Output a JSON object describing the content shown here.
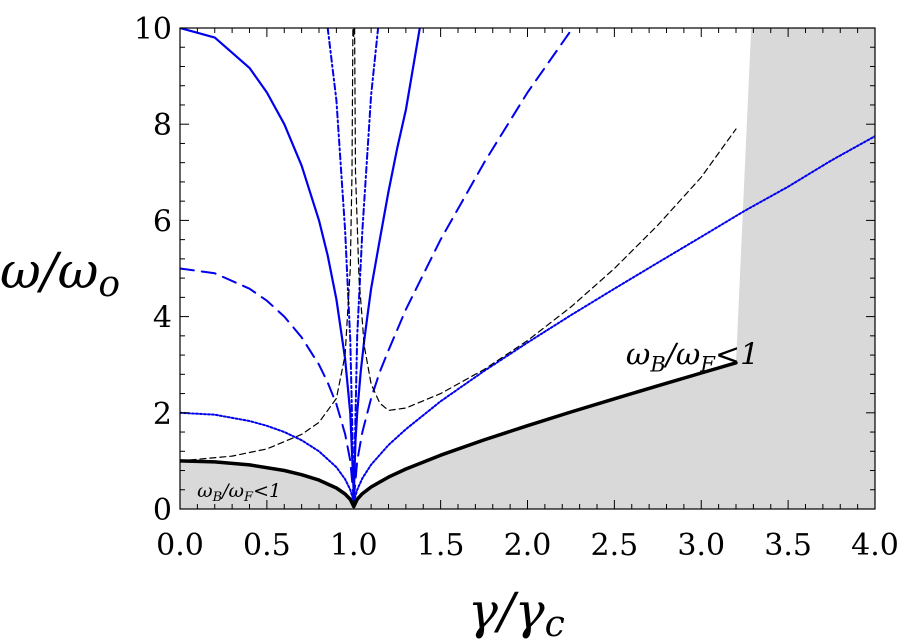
{
  "chart_data": {
    "type": "line",
    "xlabel": "γ/γ",
    "xlabel_sub": "c",
    "ylabel": "ω/ω",
    "ylabel_sub": "o",
    "xlim": [
      0,
      4
    ],
    "ylim": [
      0,
      10
    ],
    "xticks": [
      "0.0",
      "0.5",
      "1.0",
      "1.5",
      "2.0",
      "2.5",
      "3.0",
      "3.5",
      "4.0"
    ],
    "yticks": [
      "0",
      "2",
      "4",
      "6",
      "8",
      "10"
    ],
    "grid": false,
    "region_color": "#d9d9d9",
    "colors": {
      "blue": "#0000ee",
      "black": "#000000"
    },
    "annotations": [
      {
        "text": "ω",
        "sub": "B",
        "mid": "/ω",
        "sub2": "F",
        "tail": "<1",
        "x": 2.95,
        "y": 3.0,
        "size": "big"
      },
      {
        "text": "ω",
        "sub": "B",
        "mid": "/ω",
        "sub2": "F",
        "tail": "<1",
        "x": 0.34,
        "y": 0.25,
        "size": "small"
      }
    ],
    "series": [
      {
        "style": "boundary",
        "color": "#000000",
        "dash": "",
        "width": 3.5,
        "points": [
          [
            0,
            1
          ],
          [
            0.2,
            0.98
          ],
          [
            0.4,
            0.917
          ],
          [
            0.6,
            0.8
          ],
          [
            0.7,
            0.714
          ],
          [
            0.8,
            0.6
          ],
          [
            0.9,
            0.436
          ],
          [
            0.95,
            0.312
          ],
          [
            0.98,
            0.2
          ],
          [
            1,
            0.05
          ],
          [
            1.02,
            0.202
          ],
          [
            1.05,
            0.32
          ],
          [
            1.1,
            0.458
          ],
          [
            1.2,
            0.663
          ],
          [
            1.3,
            0.831
          ],
          [
            1.5,
            1.118
          ],
          [
            1.75,
            1.436
          ],
          [
            2,
            1.732
          ],
          [
            2.25,
            2.016
          ],
          [
            2.5,
            2.291
          ],
          [
            2.75,
            2.562
          ],
          [
            3,
            2.828
          ],
          [
            3.2,
            3.04
          ]
        ]
      },
      {
        "style": "solid",
        "color": "#0000ee",
        "dash": "",
        "width": 2.2,
        "points": [
          [
            0,
            10
          ],
          [
            0.2,
            9.8
          ],
          [
            0.4,
            9.17
          ],
          [
            0.5,
            8.66
          ],
          [
            0.6,
            8
          ],
          [
            0.7,
            7.14
          ],
          [
            0.8,
            6
          ],
          [
            0.85,
            5.27
          ],
          [
            0.9,
            4.36
          ],
          [
            0.95,
            3.12
          ],
          [
            0.98,
            1.99
          ],
          [
            1,
            0.3
          ]
        ]
      },
      {
        "style": "solid",
        "color": "#0000ee",
        "dash": "",
        "width": 2.2,
        "points": [
          [
            1,
            0.3
          ],
          [
            1.01,
            1.42
          ],
          [
            1.02,
            2.0
          ],
          [
            1.04,
            2.85
          ],
          [
            1.06,
            3.5
          ],
          [
            1.08,
            4.04
          ],
          [
            1.1,
            4.58
          ],
          [
            1.15,
            5.6
          ],
          [
            1.2,
            6.6
          ],
          [
            1.25,
            7.5
          ],
          [
            1.3,
            8.3
          ],
          [
            1.38,
            10
          ]
        ]
      },
      {
        "style": "dashed",
        "color": "#0000ee",
        "dash": "14,8",
        "width": 2,
        "points": [
          [
            0,
            5
          ],
          [
            0.2,
            4.9
          ],
          [
            0.4,
            4.58
          ],
          [
            0.5,
            4.33
          ],
          [
            0.6,
            4.0
          ],
          [
            0.7,
            3.57
          ],
          [
            0.8,
            3.0
          ],
          [
            0.85,
            2.63
          ],
          [
            0.9,
            2.18
          ],
          [
            0.95,
            1.56
          ],
          [
            0.98,
            1.0
          ],
          [
            1,
            0.2
          ]
        ]
      },
      {
        "style": "dashed",
        "color": "#0000ee",
        "dash": "14,8",
        "width": 2,
        "points": [
          [
            1,
            0.2
          ],
          [
            1.02,
            1.0
          ],
          [
            1.05,
            1.6
          ],
          [
            1.1,
            2.3
          ],
          [
            1.15,
            2.85
          ],
          [
            1.2,
            3.3
          ],
          [
            1.3,
            4.15
          ],
          [
            1.5,
            5.6
          ],
          [
            1.75,
            7.2
          ],
          [
            2,
            8.66
          ],
          [
            2.26,
            10
          ]
        ]
      },
      {
        "style": "dotted",
        "color": "#0000ee",
        "dash": "2,2",
        "width": 2,
        "points": [
          [
            0,
            2
          ],
          [
            0.2,
            1.96
          ],
          [
            0.4,
            1.83
          ],
          [
            0.5,
            1.73
          ],
          [
            0.6,
            1.6
          ],
          [
            0.7,
            1.43
          ],
          [
            0.8,
            1.2
          ],
          [
            0.9,
            0.87
          ],
          [
            0.95,
            0.62
          ],
          [
            0.98,
            0.4
          ],
          [
            1,
            0.15
          ]
        ]
      },
      {
        "style": "dotted",
        "color": "#0000ee",
        "dash": "2,2",
        "width": 2,
        "points": [
          [
            1,
            0.15
          ],
          [
            1.02,
            0.4
          ],
          [
            1.05,
            0.64
          ],
          [
            1.1,
            0.92
          ],
          [
            1.2,
            1.33
          ],
          [
            1.3,
            1.66
          ],
          [
            1.5,
            2.24
          ],
          [
            1.75,
            2.87
          ],
          [
            2,
            3.46
          ],
          [
            2.25,
            4.03
          ],
          [
            2.5,
            4.58
          ],
          [
            2.75,
            5.12
          ],
          [
            3,
            5.66
          ],
          [
            3.25,
            6.2
          ],
          [
            3.5,
            6.7
          ],
          [
            3.75,
            7.25
          ],
          [
            4,
            7.75
          ]
        ]
      },
      {
        "style": "dotdash",
        "color": "#0000ee",
        "dash": "6,3,2,3",
        "width": 2,
        "points": [
          [
            0.85,
            10
          ],
          [
            0.9,
            8.5
          ],
          [
            0.95,
            5.8
          ],
          [
            0.98,
            3.5
          ],
          [
            1,
            0.3
          ]
        ]
      },
      {
        "style": "dotdash",
        "color": "#0000ee",
        "dash": "6,3,2,3",
        "width": 2,
        "points": [
          [
            1,
            0.3
          ],
          [
            1.02,
            3.6
          ],
          [
            1.05,
            5.8
          ],
          [
            1.1,
            8.6
          ],
          [
            1.14,
            10
          ]
        ]
      },
      {
        "style": "thin-dashed",
        "color": "#000000",
        "dash": "6,4",
        "width": 1.2,
        "points": [
          [
            0,
            1.0
          ],
          [
            0.3,
            1.1
          ],
          [
            0.5,
            1.25
          ],
          [
            0.7,
            1.55
          ],
          [
            0.8,
            1.8
          ],
          [
            0.9,
            2.3
          ],
          [
            0.95,
            3.2
          ],
          [
            0.98,
            5.0
          ],
          [
            0.99,
            7
          ],
          [
            0.995,
            10
          ]
        ]
      },
      {
        "style": "thin-dashed",
        "color": "#000000",
        "dash": "6,4",
        "width": 1.2,
        "points": [
          [
            1.005,
            10
          ],
          [
            1.01,
            7
          ],
          [
            1.03,
            4.8
          ],
          [
            1.06,
            3.4
          ],
          [
            1.1,
            2.6
          ],
          [
            1.15,
            2.2
          ],
          [
            1.2,
            2.05
          ],
          [
            1.3,
            2.1
          ],
          [
            1.5,
            2.4
          ],
          [
            1.75,
            2.9
          ],
          [
            2,
            3.5
          ],
          [
            2.25,
            4.2
          ],
          [
            2.5,
            5.0
          ],
          [
            2.75,
            5.9
          ],
          [
            3,
            6.9
          ],
          [
            3.1,
            7.4
          ],
          [
            3.2,
            7.9
          ]
        ]
      }
    ]
  }
}
